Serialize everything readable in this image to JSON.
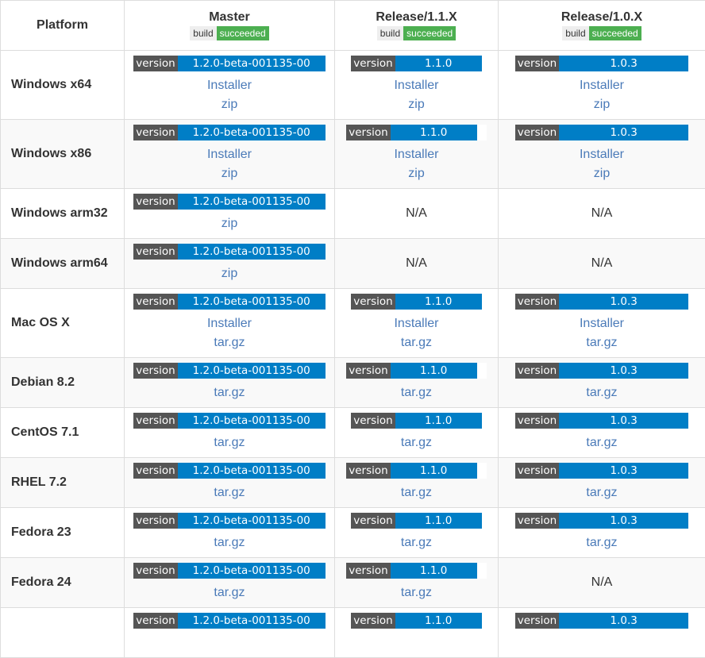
{
  "header": {
    "platform": "Platform",
    "columns": [
      {
        "title": "Master",
        "build_label": "build",
        "build_status": "succeeded"
      },
      {
        "title": "Release/1.1.X",
        "build_label": "build",
        "build_status": "succeeded"
      },
      {
        "title": "Release/1.0.X",
        "build_label": "build",
        "build_status": "succeeded"
      }
    ]
  },
  "version_label": "version",
  "versions": {
    "master": "1.2.0-beta-001135-00",
    "r11": "1.1.0",
    "r10": "1.0.3"
  },
  "links": {
    "installer": "Installer",
    "zip": "zip",
    "targz": "tar.gz"
  },
  "na": "N/A",
  "rows": [
    {
      "platform": "Windows x64"
    },
    {
      "platform": "Windows x86"
    },
    {
      "platform": "Windows arm32"
    },
    {
      "platform": "Windows arm64"
    },
    {
      "platform": "Mac OS X"
    },
    {
      "platform": "Debian 8.2"
    },
    {
      "platform": "CentOS 7.1"
    },
    {
      "platform": "RHEL 7.2"
    },
    {
      "platform": "Fedora 23"
    },
    {
      "platform": "Fedora 24"
    },
    {
      "platform": ""
    }
  ],
  "colors": {
    "version_label_bg": "#555555",
    "version_value_bg": "#007ec6",
    "build_ok_bg": "#4caf50",
    "link": "#4a7ab8"
  }
}
